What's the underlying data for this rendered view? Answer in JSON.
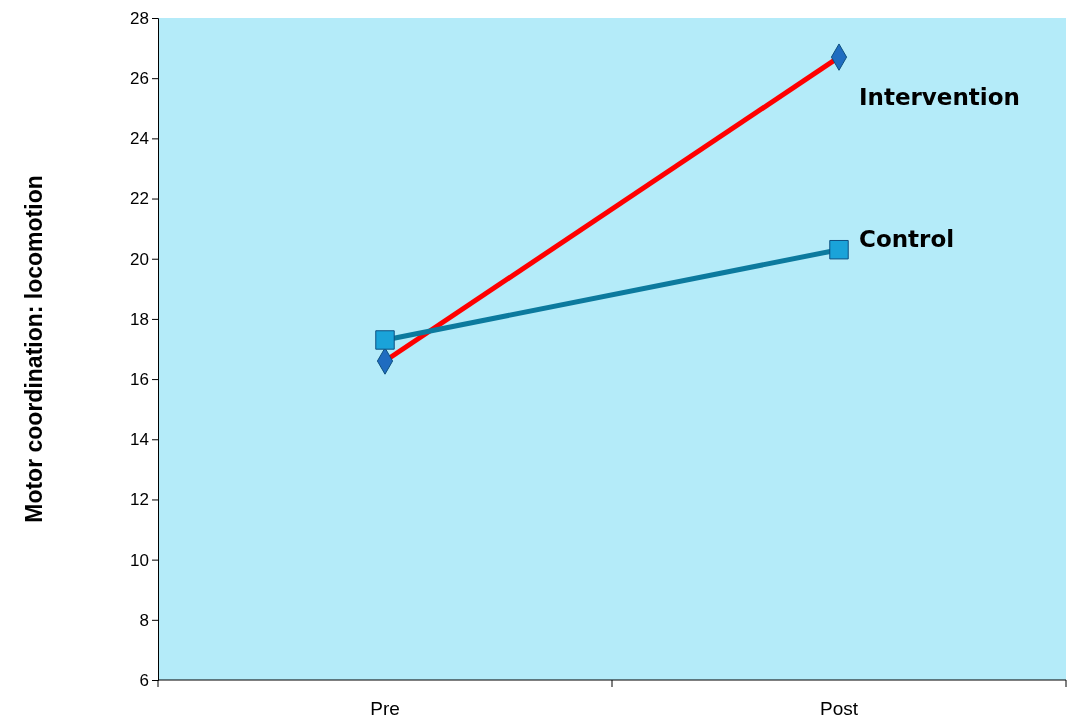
{
  "chart_data": {
    "type": "line",
    "ylabel": "Motor coordination: locomotion",
    "categories": [
      "Pre",
      "Post"
    ],
    "series": [
      {
        "name": "Intervention",
        "color": "#ff0000",
        "marker": "diamond",
        "values": [
          16.6,
          26.7
        ]
      },
      {
        "name": "Control",
        "color": "#0c7a9e",
        "marker": "square",
        "values": [
          17.3,
          20.3
        ]
      }
    ],
    "ylim": [
      6,
      28
    ],
    "yticks": [
      6,
      8,
      10,
      12,
      14,
      16,
      18,
      20,
      22,
      24,
      26,
      28
    ],
    "grid": false
  }
}
